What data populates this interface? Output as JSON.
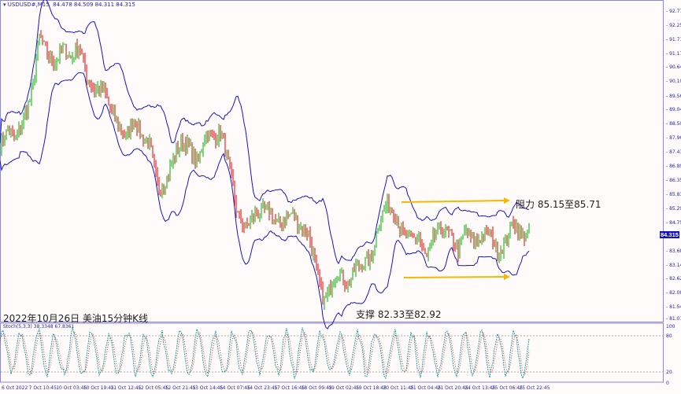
{
  "header": {
    "symbol": "USDUSD#,M15",
    "ohlc": "84.478 84.509 84.311 84.315"
  },
  "stoch_label": "Stoch(5,3,3) 38.3348 67.8361",
  "title_annotation": "2022年10月26日 美油15分钟K线",
  "resistance_annotation": "阻力 85.15至85.71",
  "support_annotation": "支撑 82.33至82.92",
  "current_price": "84.315",
  "colors": {
    "axis": "#2a2aa0",
    "band": "#1414c8",
    "bull": "#00b000",
    "bear": "#e00000",
    "arrow": "#f5b800",
    "stoch_main": "#20a0a0",
    "stoch_signal": "#e03030"
  },
  "chart_data": {
    "type": "candlestick",
    "price_ticks": [
      "92.775",
      "92.250",
      "91.710",
      "91.170",
      "90.645",
      "90.105",
      "89.565",
      "89.040",
      "88.500",
      "87.960",
      "87.435",
      "86.895",
      "86.355",
      "85.830",
      "85.290",
      "84.750",
      "83.685",
      "83.145",
      "82.620",
      "82.080",
      "81.540",
      "81.015"
    ],
    "ylim": [
      81.015,
      92.775
    ],
    "stoch_ticks": [
      "100",
      "80",
      "20",
      "0"
    ],
    "time_ticks": [
      "6 Oct 2022",
      "7 Oct 10:45",
      "10 Oct 03:45",
      "10 Oct 19:45",
      "11 Oct 12:45",
      "12 Oct 05:45",
      "12 Oct 21:45",
      "13 Oct 14:45",
      "14 Oct 07:45",
      "14 Oct 23:45",
      "17 Oct 16:45",
      "18 Oct 09:45",
      "19 Oct 02:45",
      "19 Oct 18:45",
      "20 Oct 11:45",
      "21 Oct 04:45",
      "21 Oct 20:45",
      "24 Oct 13:45",
      "25 Oct 06:45",
      "25 Oct 22:45"
    ],
    "close_path": [
      87.7,
      88.3,
      88.0,
      88.75,
      89.64,
      91.88,
      91.13,
      90.83,
      91.43,
      90.98,
      91.58,
      90.24,
      89.79,
      89.94,
      89.04,
      88.45,
      88.0,
      88.75,
      88.0,
      87.7,
      86.06,
      86.36,
      87.25,
      87.85,
      87.7,
      86.95,
      88.15,
      88.0,
      88.15,
      86.95,
      85.16,
      84.57,
      85.01,
      85.16,
      85.31,
      84.72,
      84.87,
      85.16,
      84.57,
      84.42,
      83.07,
      81.73,
      82.48,
      82.93,
      82.33,
      83.07,
      83.22,
      83.37,
      84.87,
      85.46,
      85.16,
      84.27,
      84.12,
      84.27,
      83.37,
      84.27,
      84.57,
      84.27,
      83.67,
      84.57,
      83.97,
      84.27,
      84.42,
      83.67,
      83.97,
      84.87,
      84.27,
      84.315
    ],
    "resistance": [
      85.15,
      85.71
    ],
    "support": [
      82.33,
      82.92
    ]
  }
}
